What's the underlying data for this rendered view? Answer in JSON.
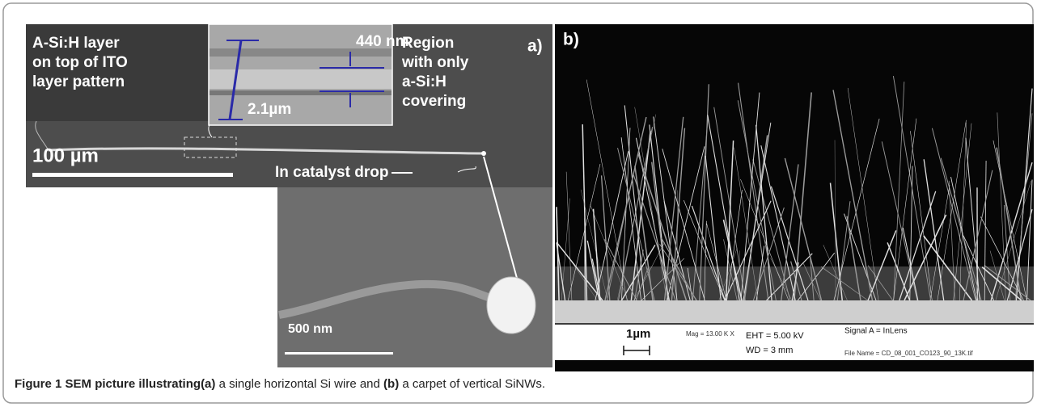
{
  "panel_a": {
    "label": "a)",
    "left_note": [
      "A-Si:H layer",
      "on top of ITO",
      "layer pattern"
    ],
    "inset": {
      "thickness": "440 nm",
      "width": "2.1µm"
    },
    "right_note": [
      "Region",
      "with only",
      "a-Si:H",
      "covering"
    ],
    "scale_bar": "100 µm",
    "callout": "In catalyst drop",
    "zoom_scale_bar": "500 nm"
  },
  "panel_b": {
    "label": "b)",
    "scale_bar": "1µm",
    "mag": "Mag = 13.00 K X",
    "eht": "EHT = 5.00 kV",
    "wd": "WD =  3 mm",
    "signal": "Signal A = InLens",
    "file_name": "File Name = CD_08_001_CO123_90_13K.tif"
  },
  "caption": {
    "label": "Figure 1",
    "lead": "SEM picture illustrating",
    "part_a_label": "(a)",
    "part_a": "a single horizontal Si wire and",
    "part_b_label": "(b)",
    "part_b": "a carpet of vertical SiNWs."
  }
}
